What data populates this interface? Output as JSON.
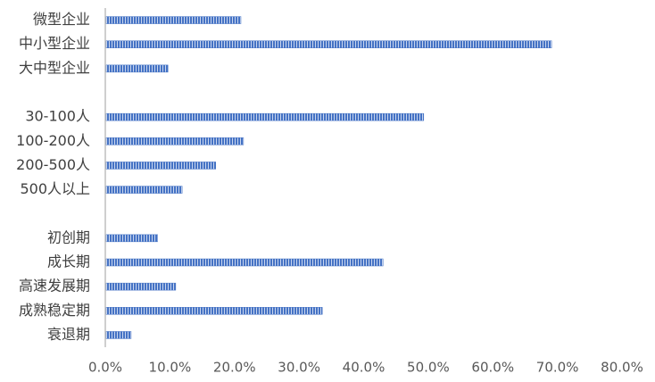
{
  "chart_data": {
    "type": "bar",
    "orientation": "horizontal",
    "color": "#4472c4",
    "categories": [
      "微型企业",
      "中小型企业",
      "大中型企业",
      null,
      "30-100人",
      "100-200人",
      "200-500人",
      "500人以上",
      null,
      "初创期",
      "成长期",
      "高速发展期",
      "成熟稳定期",
      "衰退期"
    ],
    "values": [
      21.0,
      69.1,
      9.7,
      null,
      49.3,
      21.4,
      17.1,
      11.9,
      null,
      8.1,
      43.0,
      10.9,
      33.6,
      4.0
    ],
    "xlim": [
      0,
      80
    ],
    "xticks": [
      {
        "value": 0,
        "label": "0.0%"
      },
      {
        "value": 10,
        "label": "10.0%"
      },
      {
        "value": 20,
        "label": "20.0%"
      },
      {
        "value": 30,
        "label": "30.0%"
      },
      {
        "value": 40,
        "label": "40.0%"
      },
      {
        "value": 50,
        "label": "50.0%"
      },
      {
        "value": 60,
        "label": "60.0%"
      },
      {
        "value": 70,
        "label": "70.0%"
      },
      {
        "value": 80,
        "label": "80.0%"
      }
    ],
    "grid": false
  }
}
